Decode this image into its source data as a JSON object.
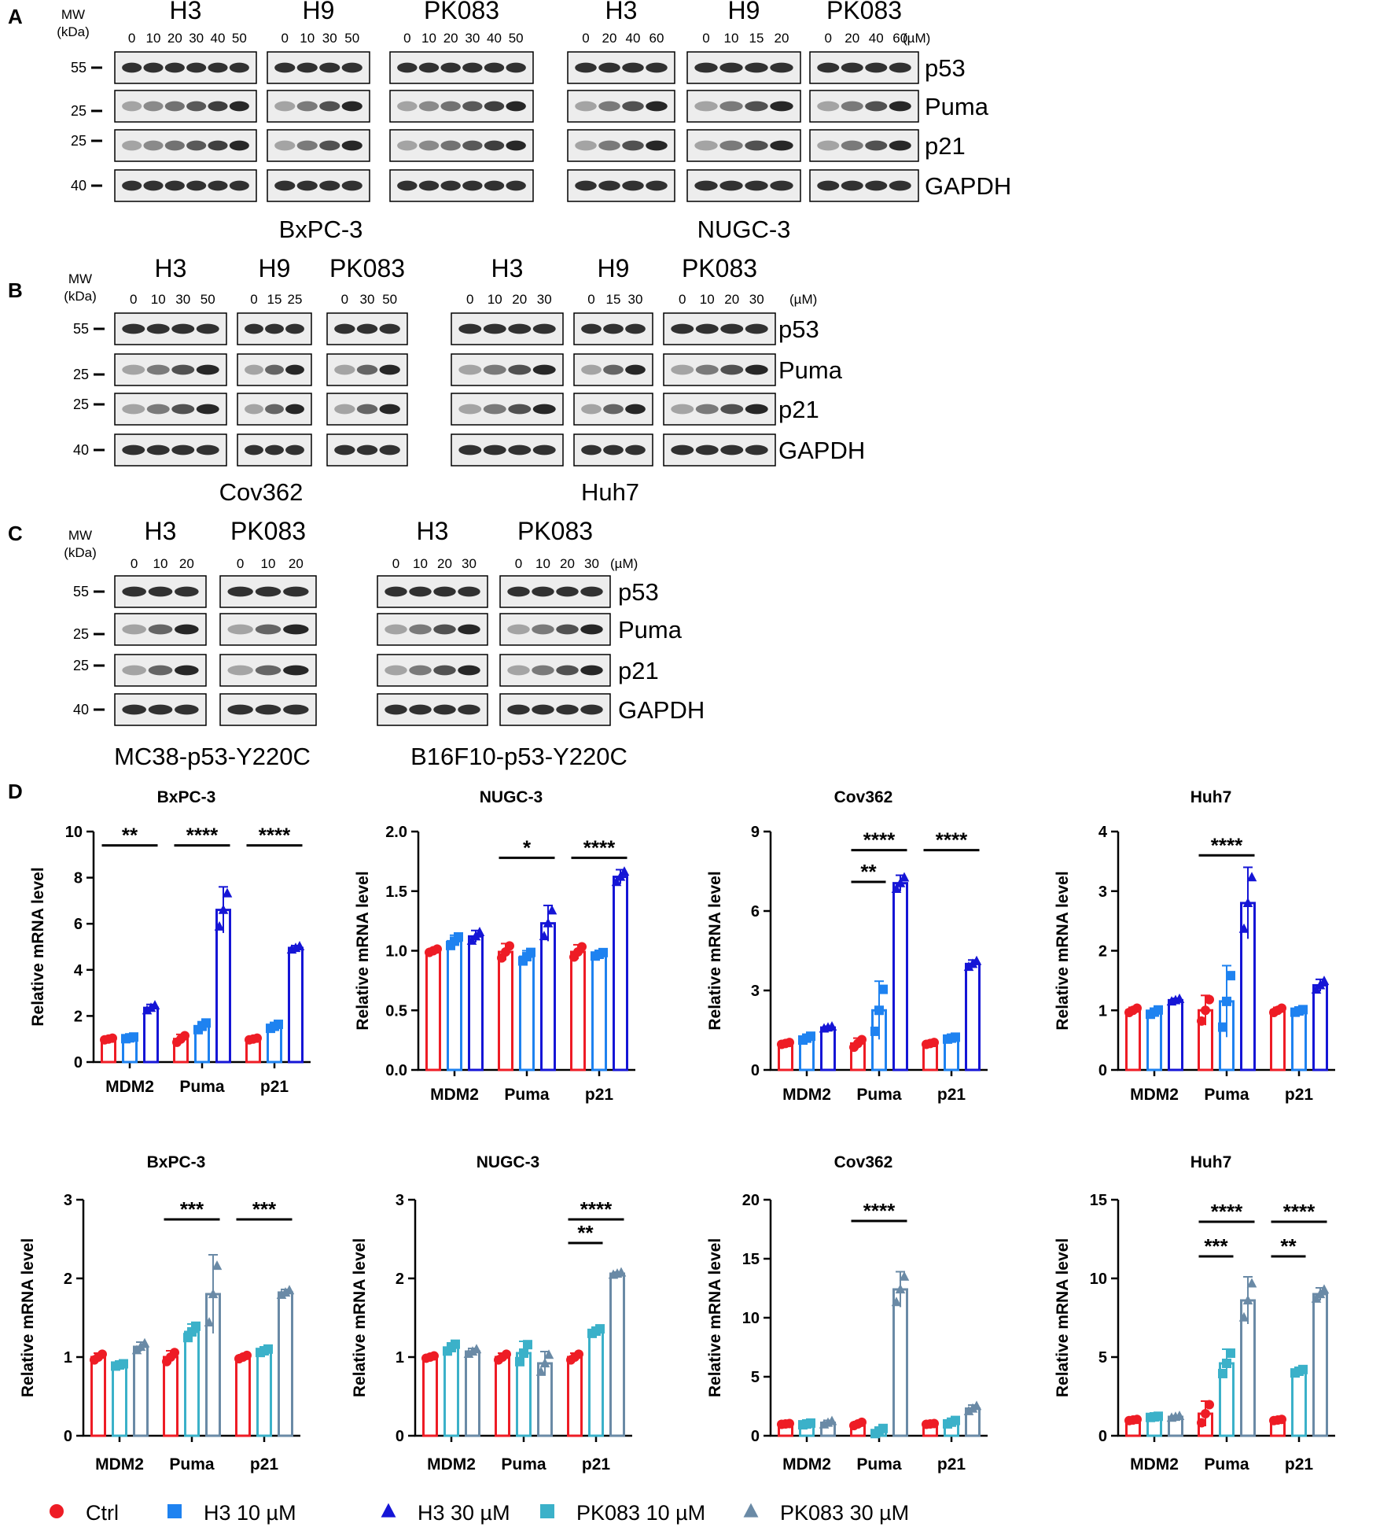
{
  "colors": {
    "ctrl": "#ee1c25",
    "h3_10": "#1e82f0",
    "h3_30": "#1515d6",
    "pk_10": "#3bb1c9",
    "pk_30": "#6a8aa6",
    "blot_bg": "#ededed",
    "band": "#1c1c1c"
  },
  "panel_letters": [
    "A",
    "B",
    "C",
    "D"
  ],
  "mw_header": [
    "MW",
    "(kDa)"
  ],
  "blots": [
    {
      "letter": "A",
      "markers": [
        "55",
        "25",
        "25",
        "40"
      ],
      "rows": [
        "p53",
        "Puma",
        "p21",
        "GAPDH"
      ],
      "groups": [
        {
          "name": "H3",
          "doses": [
            "0",
            "10",
            "20",
            "30",
            "40",
            "50"
          ]
        },
        {
          "name": "H9",
          "doses": [
            "0",
            "10",
            "30",
            "50"
          ]
        },
        {
          "name": "PK083",
          "doses": [
            "0",
            "10",
            "20",
            "30",
            "40",
            "50"
          ]
        },
        {
          "name": "H3",
          "doses": [
            "0",
            "20",
            "40",
            "60"
          ]
        },
        {
          "name": "H9",
          "doses": [
            "0",
            "10",
            "15",
            "20"
          ]
        },
        {
          "name": "PK083",
          "doses": [
            "0",
            "20",
            "40",
            "60"
          ]
        }
      ],
      "unit": "(µM)",
      "cell_lines": [
        "BxPC-3",
        "NUGC-3"
      ]
    },
    {
      "letter": "B",
      "markers": [
        "55",
        "25",
        "25",
        "40"
      ],
      "rows": [
        "p53",
        "Puma",
        "p21",
        "GAPDH"
      ],
      "groups": [
        {
          "name": "H3",
          "doses": [
            "0",
            "10",
            "30",
            "50"
          ]
        },
        {
          "name": "H9",
          "doses": [
            "0",
            "15",
            "25"
          ]
        },
        {
          "name": "PK083",
          "doses": [
            "0",
            "30",
            "50"
          ]
        },
        {
          "name": "H3",
          "doses": [
            "0",
            "10",
            "20",
            "30"
          ]
        },
        {
          "name": "H9",
          "doses": [
            "0",
            "15",
            "30"
          ]
        },
        {
          "name": "PK083",
          "doses": [
            "0",
            "10",
            "20",
            "30"
          ]
        }
      ],
      "unit": "(µM)",
      "cell_lines": [
        "Cov362",
        "Huh7"
      ]
    },
    {
      "letter": "C",
      "markers": [
        "55",
        "25",
        "25",
        "40"
      ],
      "rows": [
        "p53",
        "Puma",
        "p21",
        "GAPDH"
      ],
      "groups": [
        {
          "name": "H3",
          "doses": [
            "0",
            "10",
            "20"
          ]
        },
        {
          "name": "PK083",
          "doses": [
            "0",
            "10",
            "20"
          ]
        },
        {
          "name": "H3",
          "doses": [
            "0",
            "10",
            "20",
            "30"
          ]
        },
        {
          "name": "PK083",
          "doses": [
            "0",
            "10",
            "20",
            "30"
          ]
        }
      ],
      "unit": "(µM)",
      "cell_lines": [
        "MC38-p53-Y220C",
        "B16F10-p53-Y220C"
      ]
    }
  ],
  "chart_data": [
    {
      "type": "bar",
      "title": "BxPC-3",
      "ylabel": "Relative mRNA level",
      "categories": [
        "MDM2",
        "Puma",
        "p21"
      ],
      "ylim": [
        0,
        10
      ],
      "yticks": [
        "0",
        "2",
        "4",
        "6",
        "8",
        "10"
      ],
      "series": [
        {
          "name": "Ctrl",
          "values": [
            1.0,
            1.0,
            1.0
          ],
          "errors": [
            0.05,
            0.2,
            0.05
          ]
        },
        {
          "name": "H3 10 µM",
          "values": [
            1.05,
            1.55,
            1.55
          ],
          "errors": [
            0.05,
            0.2,
            0.12
          ]
        },
        {
          "name": "H3 30 µM",
          "values": [
            2.35,
            6.6,
            4.95
          ],
          "errors": [
            0.15,
            1.0,
            0.1
          ]
        }
      ],
      "significance": [
        {
          "label": "**",
          "y": 9.4,
          "group": 0,
          "from": 0,
          "to": 2
        },
        {
          "label": "****",
          "y": 9.4,
          "group": 1,
          "from": 0,
          "to": 2
        },
        {
          "label": "****",
          "y": 9.4,
          "group": 2,
          "from": 0,
          "to": 2
        }
      ]
    },
    {
      "type": "bar",
      "title": "NUGC-3",
      "ylabel": "Relative mRNA level",
      "categories": [
        "MDM2",
        "Puma",
        "p21"
      ],
      "ylim": [
        0,
        2
      ],
      "yticks": [
        "0.0",
        "0.5",
        "1.0",
        "1.5",
        "2.0"
      ],
      "series": [
        {
          "name": "Ctrl",
          "values": [
            1.0,
            0.99,
            0.99
          ],
          "errors": [
            0.02,
            0.07,
            0.06
          ]
        },
        {
          "name": "H3 10 µM",
          "values": [
            1.08,
            0.95,
            0.97
          ],
          "errors": [
            0.05,
            0.05,
            0.02
          ]
        },
        {
          "name": "H3 30 µM",
          "values": [
            1.12,
            1.23,
            1.62
          ],
          "errors": [
            0.05,
            0.15,
            0.06
          ]
        }
      ],
      "significance": [
        {
          "label": "*",
          "y": 1.78,
          "group": 1,
          "from": 0,
          "to": 2
        },
        {
          "label": "****",
          "y": 1.78,
          "group": 2,
          "from": 0,
          "to": 2
        }
      ]
    },
    {
      "type": "bar",
      "title": "Cov362",
      "ylabel": "Relative mRNA level",
      "categories": [
        "MDM2",
        "Puma",
        "p21"
      ],
      "ylim": [
        0,
        9
      ],
      "yticks": [
        "0",
        "3",
        "6",
        "9"
      ],
      "series": [
        {
          "name": "Ctrl",
          "values": [
            1.0,
            1.0,
            1.0
          ],
          "errors": [
            0.05,
            0.2,
            0.05
          ]
        },
        {
          "name": "H3 10 µM",
          "values": [
            1.2,
            2.25,
            1.2
          ],
          "errors": [
            0.1,
            1.1,
            0.05
          ]
        },
        {
          "name": "H3 30 µM",
          "values": [
            1.6,
            7.05,
            4.0
          ],
          "errors": [
            0.05,
            0.3,
            0.15
          ]
        }
      ],
      "significance": [
        {
          "label": "****",
          "y": 8.3,
          "group": 1,
          "from": 0,
          "to": 2
        },
        {
          "label": "**",
          "y": 7.1,
          "group": 1,
          "from": 0,
          "to": 1
        },
        {
          "label": "****",
          "y": 8.3,
          "group": 2,
          "from": 0,
          "to": 2
        }
      ]
    },
    {
      "type": "bar",
      "title": "Huh7",
      "ylabel": "Relative mRNA level",
      "categories": [
        "MDM2",
        "Puma",
        "p21"
      ],
      "ylim": [
        0,
        4
      ],
      "yticks": [
        "0",
        "1",
        "2",
        "3",
        "4"
      ],
      "series": [
        {
          "name": "Ctrl",
          "values": [
            1.0,
            1.0,
            1.0
          ],
          "errors": [
            0.05,
            0.25,
            0.05
          ]
        },
        {
          "name": "H3 10 µM",
          "values": [
            0.97,
            1.15,
            0.99
          ],
          "errors": [
            0.05,
            0.6,
            0.03
          ]
        },
        {
          "name": "H3 30 µM",
          "values": [
            1.17,
            2.8,
            1.42
          ],
          "errors": [
            0.03,
            0.6,
            0.1
          ]
        }
      ],
      "significance": [
        {
          "label": "****",
          "y": 3.6,
          "group": 1,
          "from": 0,
          "to": 2
        }
      ]
    },
    {
      "type": "bar",
      "title": "BxPC-3",
      "ylabel": "Relative mRNA level",
      "categories": [
        "MDM2",
        "Puma",
        "p21"
      ],
      "ylim": [
        0,
        3
      ],
      "yticks": [
        "0",
        "1",
        "2",
        "3"
      ],
      "series": [
        {
          "name": "Ctrl",
          "values": [
            1.0,
            1.0,
            1.0
          ],
          "errors": [
            0.05,
            0.08,
            0.03
          ]
        },
        {
          "name": "PK083 10 µM",
          "values": [
            0.9,
            1.32,
            1.08
          ],
          "errors": [
            0.02,
            0.1,
            0.03
          ]
        },
        {
          "name": "PK083 30 µM",
          "values": [
            1.13,
            1.8,
            1.82
          ],
          "errors": [
            0.06,
            0.5,
            0.04
          ]
        }
      ],
      "significance": [
        {
          "label": "***",
          "y": 2.75,
          "group": 1,
          "from": 0,
          "to": 2
        },
        {
          "label": "***",
          "y": 2.75,
          "group": 2,
          "from": 0,
          "to": 2
        }
      ]
    },
    {
      "type": "bar",
      "title": "NUGC-3",
      "ylabel": "Relative mRNA level",
      "categories": [
        "MDM2",
        "Puma",
        "p21"
      ],
      "ylim": [
        0,
        3
      ],
      "yticks": [
        "0",
        "1",
        "2",
        "3"
      ],
      "series": [
        {
          "name": "Ctrl",
          "values": [
            1.0,
            1.0,
            1.0
          ],
          "errors": [
            0.02,
            0.05,
            0.05
          ]
        },
        {
          "name": "PK083 10 µM",
          "values": [
            1.12,
            1.05,
            1.33
          ],
          "errors": [
            0.06,
            0.15,
            0.04
          ]
        },
        {
          "name": "PK083 30 µM",
          "values": [
            1.07,
            0.92,
            2.06
          ],
          "errors": [
            0.04,
            0.15,
            0.02
          ]
        }
      ],
      "significance": [
        {
          "label": "****",
          "y": 2.75,
          "group": 2,
          "from": 0,
          "to": 2
        },
        {
          "label": "**",
          "y": 2.45,
          "group": 2,
          "from": 0,
          "to": 1
        }
      ]
    },
    {
      "type": "bar",
      "title": "Cov362",
      "ylabel": "Relative mRNA level",
      "categories": [
        "MDM2",
        "Puma",
        "p21"
      ],
      "ylim": [
        0,
        20
      ],
      "yticks": [
        "0",
        "5",
        "10",
        "15",
        "20"
      ],
      "series": [
        {
          "name": "Ctrl",
          "values": [
            1.0,
            1.0,
            1.0
          ],
          "errors": [
            0.05,
            0.2,
            0.05
          ]
        },
        {
          "name": "PK083 10 µM",
          "values": [
            1.0,
            0.4,
            1.15
          ],
          "errors": [
            0.1,
            0.3,
            0.2
          ]
        },
        {
          "name": "PK083 30 µM",
          "values": [
            1.1,
            12.4,
            2.3
          ],
          "errors": [
            0.2,
            1.5,
            0.3
          ]
        }
      ],
      "significance": [
        {
          "label": "****",
          "y": 18.2,
          "group": 1,
          "from": 0,
          "to": 2
        }
      ]
    },
    {
      "type": "bar",
      "title": "Huh7",
      "ylabel": "Relative mRNA level",
      "categories": [
        "MDM2",
        "Puma",
        "p21"
      ],
      "ylim": [
        0,
        15
      ],
      "yticks": [
        "0",
        "5",
        "10",
        "15"
      ],
      "series": [
        {
          "name": "Ctrl",
          "values": [
            1.0,
            1.4,
            1.0
          ],
          "errors": [
            0.05,
            0.8,
            0.05
          ]
        },
        {
          "name": "PK083 10 µM",
          "values": [
            1.2,
            4.6,
            4.1
          ],
          "errors": [
            0.05,
            0.9,
            0.15
          ]
        },
        {
          "name": "PK083 30 µM",
          "values": [
            1.2,
            8.6,
            9.0
          ],
          "errors": [
            0.08,
            1.5,
            0.4
          ]
        }
      ],
      "significance": [
        {
          "label": "****",
          "y": 13.6,
          "group": 1,
          "from": 0,
          "to": 2
        },
        {
          "label": "***",
          "y": 11.4,
          "group": 1,
          "from": 0,
          "to": 1
        },
        {
          "label": "****",
          "y": 13.6,
          "group": 2,
          "from": 0,
          "to": 2
        },
        {
          "label": "**",
          "y": 11.4,
          "group": 2,
          "from": 0,
          "to": 1
        }
      ]
    }
  ],
  "legend": [
    {
      "label": "Ctrl",
      "marker": "circle",
      "color": "#ee1c25"
    },
    {
      "label": "H3 10 µM",
      "marker": "square",
      "color": "#1e82f0"
    },
    {
      "label": "H3 30 µM",
      "marker": "triangle",
      "color": "#1515d6"
    },
    {
      "label": "PK083 10 µM",
      "marker": "square",
      "color": "#3bb1c9"
    },
    {
      "label": "PK083 30 µM",
      "marker": "triangle",
      "color": "#6a8aa6"
    }
  ]
}
